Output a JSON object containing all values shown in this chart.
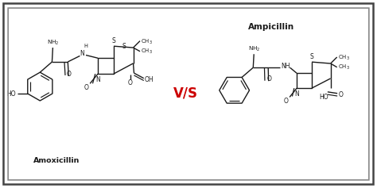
{
  "background_color": "#ffffff",
  "border_color": "#444444",
  "vs_color": "#cc0000",
  "vs_text": "V/S",
  "amox_label": "Amoxicillin",
  "amp_label": "Ampicillin",
  "line_color": "#1a1a1a",
  "fig_width": 4.74,
  "fig_height": 2.37,
  "dpi": 100
}
